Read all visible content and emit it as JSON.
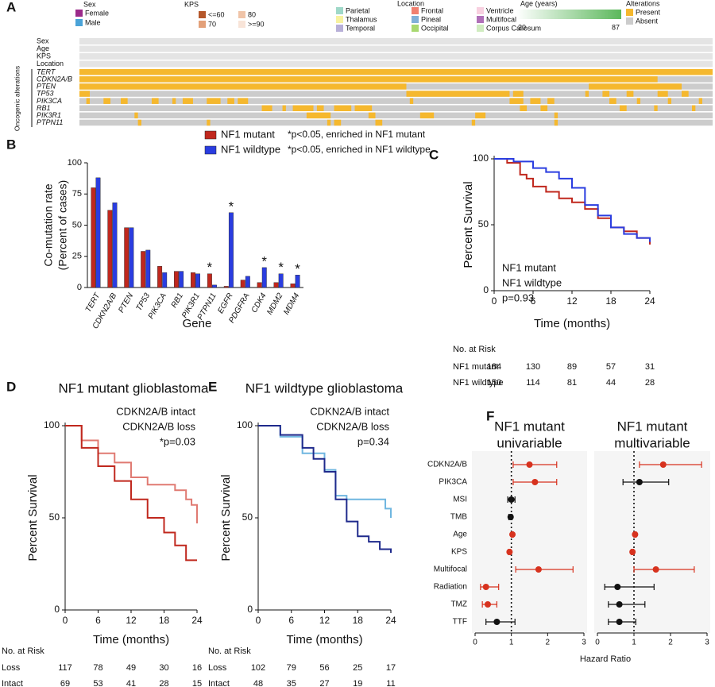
{
  "chart_data": [
    {
      "type": "oncoprint",
      "panel_label": "A",
      "clinical_rows": [
        "Sex",
        "Age",
        "KPS",
        "Location"
      ],
      "group_label": "Oncogenic alterations",
      "xlim": [
        0,
        184
      ],
      "legends": [
        {
          "title": "Sex",
          "items": [
            {
              "label": "Female",
              "color": "#9b2a8a"
            },
            {
              "label": "Male",
              "color": "#4aa3d8"
            }
          ]
        },
        {
          "title": "KPS",
          "items": [
            {
              "label": "<=60",
              "color": "#b5572b"
            },
            {
              "label": "70",
              "color": "#e3a079"
            },
            {
              "label": "80",
              "color": "#f0c4a8"
            },
            {
              "label": ">=90",
              "color": "#f8e4d8"
            }
          ]
        },
        {
          "title": "Location",
          "items": [
            {
              "label": "Parietal",
              "color": "#9fd8c8"
            },
            {
              "label": "Thalamus",
              "color": "#f7f2a0"
            },
            {
              "label": "Temporal",
              "color": "#b8b0d8"
            },
            {
              "label": "Frontal",
              "color": "#f08070"
            },
            {
              "label": "Pineal",
              "color": "#80b0d8"
            },
            {
              "label": "Occipital",
              "color": "#a8d870"
            },
            {
              "label": "Ventricle",
              "color": "#f8d0e0"
            },
            {
              "label": "Multifocal",
              "color": "#b070b8"
            },
            {
              "label": "Corpus Callosum",
              "color": "#d0ecc0"
            }
          ]
        },
        {
          "title": "Age (years)",
          "gradient": [
            "#ffffff",
            "#5cb85c"
          ],
          "range": [
            20,
            87
          ]
        },
        {
          "title": "Alterations",
          "items": [
            {
              "label": "Present",
              "color": "#f5b82e"
            },
            {
              "label": "Absent",
              "color": "#cccccc"
            }
          ]
        }
      ],
      "genes": [
        {
          "name": "TERT",
          "present": [
            [
              0,
              184
            ]
          ]
        },
        {
          "name": "CDKN2A/B",
          "present": [
            [
              0,
              168
            ]
          ]
        },
        {
          "name": "PTEN",
          "present": [
            [
              0,
              95
            ],
            [
              148,
              175
            ]
          ]
        },
        {
          "name": "TP53",
          "present": [
            [
              0,
              3
            ],
            [
              95,
              125
            ],
            [
              126,
              129
            ],
            [
              147,
              148
            ],
            [
              152,
              154
            ],
            [
              159,
              161
            ],
            [
              168,
              171
            ],
            [
              175,
              177
            ]
          ]
        },
        {
          "name": "PIK3CA",
          "present": [
            [
              2,
              3
            ],
            [
              7,
              9
            ],
            [
              12,
              14
            ],
            [
              21,
              23
            ],
            [
              27,
              28
            ],
            [
              30,
              33
            ],
            [
              37,
              41
            ],
            [
              43,
              45
            ],
            [
              46,
              49
            ],
            [
              96,
              97
            ],
            [
              125,
              129
            ],
            [
              131,
              134
            ],
            [
              136,
              138
            ],
            [
              154,
              156
            ],
            [
              162,
              163
            ],
            [
              171,
              172
            ],
            [
              180,
              181
            ]
          ]
        },
        {
          "name": "RB1",
          "present": [
            [
              53,
              56
            ],
            [
              59,
              60
            ],
            [
              62,
              68
            ],
            [
              69,
              71
            ],
            [
              74,
              79
            ],
            [
              80,
              85
            ],
            [
              128,
              130
            ],
            [
              134,
              136
            ],
            [
              157,
              159
            ],
            [
              167,
              168
            ],
            [
              178,
              179
            ]
          ]
        },
        {
          "name": "PIK3R1",
          "present": [
            [
              16,
              17
            ],
            [
              66,
              73
            ],
            [
              84,
              86
            ],
            [
              99,
              103
            ],
            [
              115,
              118
            ],
            [
              138,
              139
            ]
          ]
        },
        {
          "name": "PTPN11",
          "present": [
            [
              17,
              18
            ],
            [
              37,
              38
            ],
            [
              72,
              73
            ],
            [
              74,
              76
            ],
            [
              86,
              88
            ],
            [
              114,
              115
            ],
            [
              138,
              139
            ]
          ]
        }
      ]
    },
    {
      "type": "bar",
      "panel_label": "B",
      "categories": [
        "TERT",
        "CDKN2A/B",
        "PTEN",
        "TP53",
        "PIK3CA",
        "RB1",
        "PIK3R1",
        "PTPN11",
        "EGFR",
        "PDGFRA",
        "CDK4",
        "MDM2",
        "MDM4"
      ],
      "series": [
        {
          "name": "NF1 mutant",
          "color": "#c0281e",
          "note": "*p<0.05, enriched in NF1 mutant",
          "values": [
            80,
            62,
            48,
            29,
            17,
            13,
            12,
            11,
            1,
            6,
            4,
            4,
            3
          ]
        },
        {
          "name": "NF1 wildtype",
          "color": "#2a3de0",
          "note": "*p<0.05, enriched in NF1 wildtype",
          "values": [
            88,
            68,
            48,
            30,
            12,
            13,
            11,
            2,
            60,
            9,
            16,
            11,
            10
          ]
        }
      ],
      "annotations": [
        {
          "text": "*",
          "category": "PTPN11",
          "series": "NF1 mutant"
        },
        {
          "text": "*",
          "category": "EGFR",
          "series": "NF1 wildtype"
        },
        {
          "text": "*",
          "category": "CDK4",
          "series": "NF1 wildtype"
        },
        {
          "text": "*",
          "category": "MDM2",
          "series": "NF1 wildtype"
        },
        {
          "text": "*",
          "category": "MDM4",
          "series": "NF1 wildtype"
        }
      ],
      "ylabel": [
        "Co-mutation rate",
        "(Percent of cases)"
      ],
      "xlabel": "Gene",
      "ylim": [
        0,
        100
      ],
      "yticks": [
        0,
        25,
        50,
        75,
        100
      ]
    },
    {
      "type": "km",
      "panel_label": "C",
      "xlabel": "Time (months)",
      "ylabel": "Percent Survival",
      "xlim": [
        0,
        24
      ],
      "xticks": [
        0,
        6,
        12,
        18,
        24
      ],
      "ylim": [
        0,
        100
      ],
      "yticks": [
        0,
        50,
        100
      ],
      "annotation": "p=0.93",
      "risk_title": "No. at Risk",
      "series": [
        {
          "name": "NF1 mutant",
          "risk_label": "NF1 mutant",
          "color": "#c0281e",
          "x": [
            0,
            2,
            4,
            5,
            6,
            8,
            10,
            12,
            14,
            16,
            18,
            20,
            22,
            24
          ],
          "values": [
            100,
            97,
            88,
            85,
            79,
            75,
            70,
            67,
            62,
            55,
            48,
            45,
            40,
            35
          ],
          "risk": [
            184,
            130,
            89,
            57,
            31
          ]
        },
        {
          "name": "NF1 wildtype",
          "risk_label": "NF1 wildtype",
          "color": "#2a3de0",
          "x": [
            0,
            3,
            6,
            8,
            10,
            12,
            14,
            16,
            18,
            20,
            22,
            24
          ],
          "values": [
            100,
            98,
            93,
            90,
            85,
            78,
            65,
            57,
            48,
            43,
            40,
            37
          ],
          "risk": [
            150,
            114,
            81,
            44,
            28
          ]
        }
      ]
    },
    {
      "type": "km",
      "panel_label": "D",
      "title": "NF1 mutant glioblastoma",
      "title_color": "#c0281e",
      "xlabel": "Time (months)",
      "ylabel": "Percent Survival",
      "xlim": [
        0,
        24
      ],
      "xticks": [
        0,
        6,
        12,
        18,
        24
      ],
      "ylim": [
        0,
        100
      ],
      "yticks": [
        0,
        50,
        100
      ],
      "annotation": "*p=0.03",
      "risk_title": "No. at Risk",
      "series": [
        {
          "name": "CDKN2A/B intact",
          "risk_label": "Intact",
          "color": "#e07a72",
          "x": [
            0,
            3,
            6,
            9,
            12,
            15,
            18,
            20,
            22,
            23,
            24
          ],
          "values": [
            100,
            92,
            85,
            80,
            72,
            68,
            68,
            65,
            60,
            57,
            47
          ],
          "risk": [
            69,
            53,
            41,
            28,
            15
          ]
        },
        {
          "name": "CDKN2A/B loss",
          "risk_label": "Loss",
          "color": "#c0281e",
          "x": [
            0,
            3,
            6,
            9,
            12,
            15,
            18,
            20,
            22,
            24
          ],
          "values": [
            100,
            88,
            78,
            70,
            60,
            50,
            42,
            35,
            27,
            27
          ],
          "risk": [
            117,
            78,
            49,
            30,
            16
          ]
        }
      ]
    },
    {
      "type": "km",
      "panel_label": "E",
      "title": "NF1 wildtype glioblastoma",
      "title_color": "#2a3de0",
      "xlabel": "Time (months)",
      "ylabel": "Percent Survival",
      "xlim": [
        0,
        24
      ],
      "xticks": [
        0,
        6,
        12,
        18,
        24
      ],
      "ylim": [
        0,
        100
      ],
      "yticks": [
        0,
        50,
        100
      ],
      "annotation": "p=0.34",
      "risk_title": "No. at Risk",
      "series": [
        {
          "name": "CDKN2A/B intact",
          "risk_label": "Intact",
          "color": "#6fb6e0",
          "x": [
            0,
            4,
            8,
            12,
            14,
            16,
            20,
            23,
            24
          ],
          "values": [
            100,
            94,
            85,
            76,
            62,
            60,
            60,
            55,
            50
          ],
          "risk": [
            48,
            35,
            27,
            19,
            11
          ]
        },
        {
          "name": "CDKN2A/B loss",
          "risk_label": "Loss",
          "color": "#1f2a8c",
          "x": [
            0,
            4,
            8,
            10,
            12,
            14,
            16,
            18,
            20,
            22,
            24
          ],
          "values": [
            100,
            95,
            88,
            82,
            75,
            60,
            48,
            40,
            37,
            33,
            31
          ],
          "risk": [
            102,
            79,
            56,
            25,
            17
          ]
        }
      ]
    },
    {
      "type": "forest",
      "panel_label": "F",
      "title": [
        "NF1 mutant",
        "univariable"
      ],
      "title_color": "#c0281e",
      "categories": [
        "CDKN2A/B",
        "PIK3CA",
        "MSI",
        "TMB",
        "Age",
        "KPS",
        "Multifocal",
        "Radiation",
        "TMZ",
        "TTF"
      ],
      "values": [
        1.5,
        1.65,
        1.0,
        0.98,
        1.03,
        0.95,
        1.75,
        0.3,
        0.35,
        0.6
      ],
      "lower": [
        1.05,
        1.05,
        0.9,
        0.93,
        1.0,
        0.92,
        1.12,
        0.15,
        0.2,
        0.3
      ],
      "upper": [
        2.25,
        2.25,
        1.1,
        1.02,
        1.05,
        0.98,
        2.7,
        0.65,
        0.6,
        1.1
      ],
      "colors": [
        "#d7321e",
        "#d7321e",
        "#111111",
        "#111111",
        "#d7321e",
        "#d7321e",
        "#d7321e",
        "#d7321e",
        "#d7321e",
        "#111111"
      ],
      "xlim": [
        0,
        3
      ],
      "xticks": [
        0,
        1,
        2,
        3
      ],
      "reference": 1,
      "xlabel": "Hazard Ratio"
    },
    {
      "type": "forest",
      "title": [
        "NF1 mutant",
        "multivariable"
      ],
      "title_color": "#c0281e",
      "values": [
        1.8,
        1.15,
        null,
        null,
        1.03,
        0.96,
        1.6,
        0.55,
        0.6,
        0.6
      ],
      "lower": [
        1.15,
        0.7,
        null,
        null,
        1.0,
        0.93,
        1.0,
        0.2,
        0.3,
        0.3
      ],
      "upper": [
        2.85,
        1.95,
        null,
        null,
        1.06,
        0.99,
        2.65,
        1.55,
        1.3,
        1.05
      ],
      "colors": [
        "#d7321e",
        "#111111",
        null,
        null,
        "#d7321e",
        "#d7321e",
        "#d7321e",
        "#111111",
        "#111111",
        "#111111"
      ],
      "xlim": [
        0,
        3
      ],
      "xticks": [
        0,
        1,
        2,
        3
      ],
      "reference": 1
    }
  ]
}
